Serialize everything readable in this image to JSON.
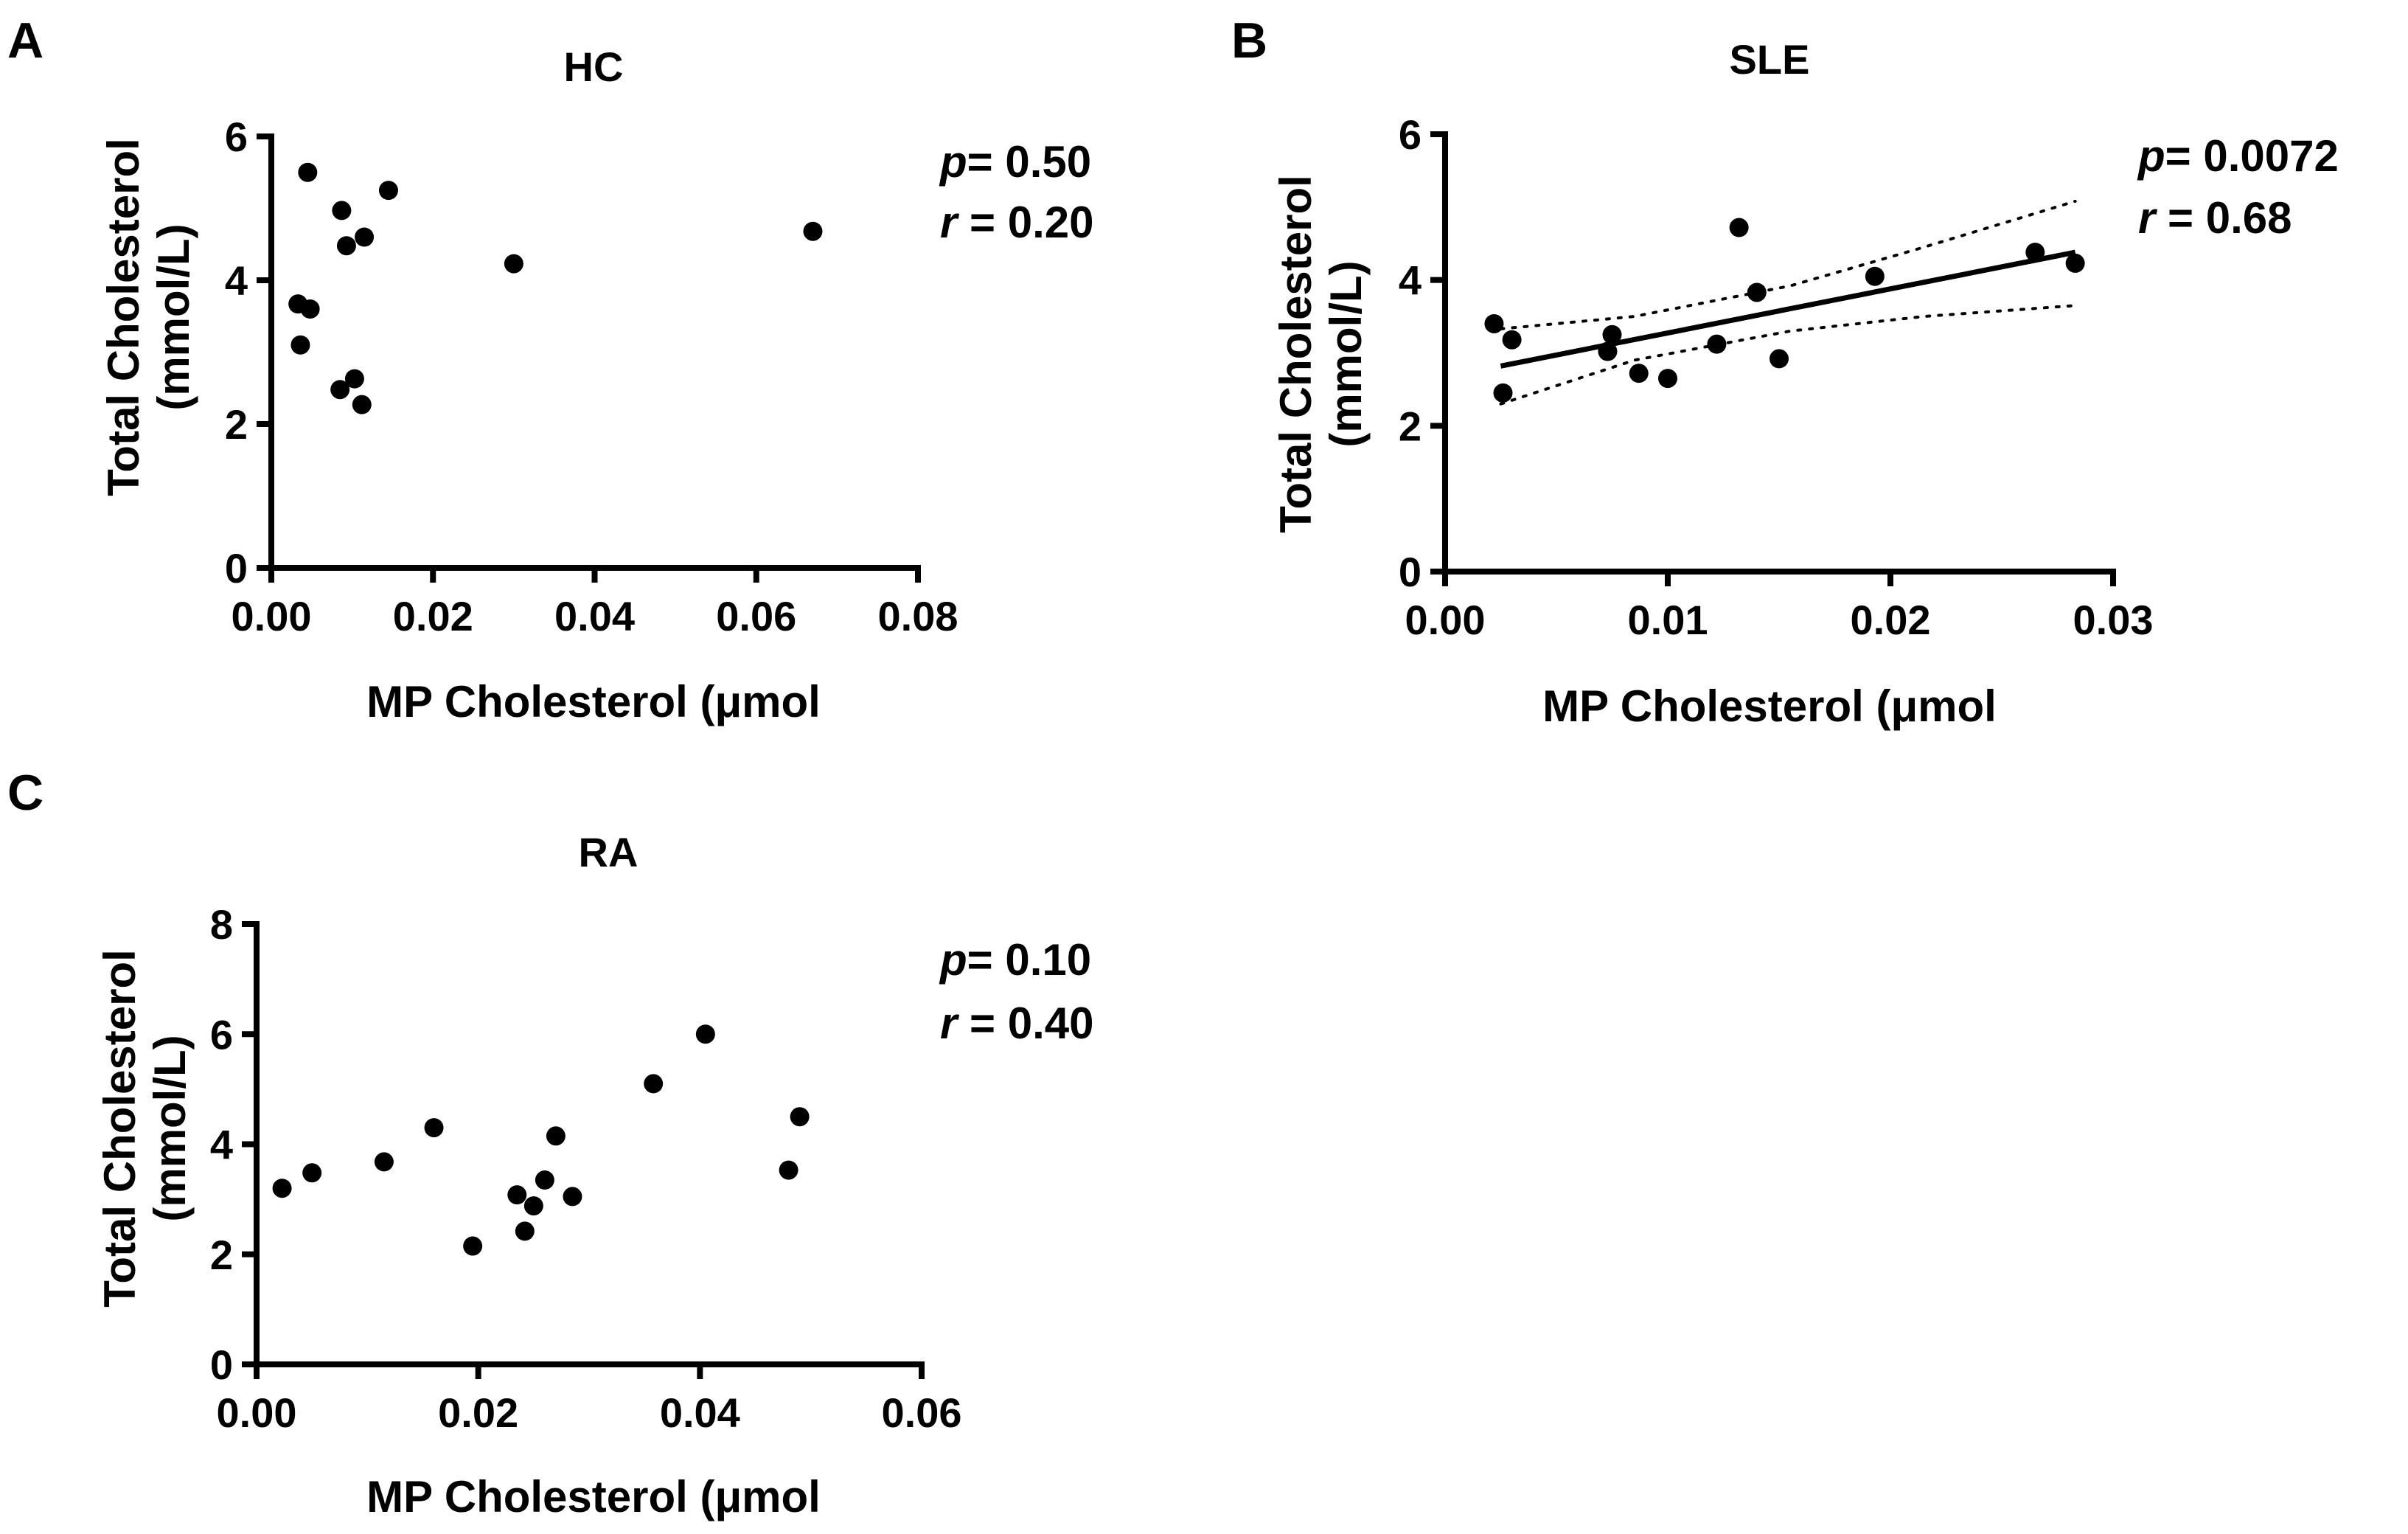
{
  "chart_data": [
    {
      "type": "scatter",
      "panel": "A",
      "title": "HC",
      "xlabel": "MP Cholesterol (μmol",
      "ylabel": "Total Cholesterol\n(mmol/L)",
      "xlim": [
        0,
        0.08
      ],
      "ylim": [
        0,
        6
      ],
      "xticks": [
        "0.00",
        "0.02",
        "0.04",
        "0.06",
        "0.08"
      ],
      "yticks": [
        "0",
        "2",
        "4",
        "6"
      ],
      "stats": {
        "p_label": "p",
        "p_value": "= 0.50",
        "r_label": "r",
        "r_value": " = 0.20"
      },
      "points": [
        {
          "x": 0.0045,
          "y": 5.5
        },
        {
          "x": 0.0145,
          "y": 5.25
        },
        {
          "x": 0.0087,
          "y": 4.97
        },
        {
          "x": 0.0115,
          "y": 4.6
        },
        {
          "x": 0.0093,
          "y": 4.48
        },
        {
          "x": 0.03,
          "y": 4.23
        },
        {
          "x": 0.067,
          "y": 4.68
        },
        {
          "x": 0.0033,
          "y": 3.67
        },
        {
          "x": 0.0048,
          "y": 3.6
        },
        {
          "x": 0.0036,
          "y": 3.1
        },
        {
          "x": 0.0103,
          "y": 2.63
        },
        {
          "x": 0.0085,
          "y": 2.48
        },
        {
          "x": 0.0112,
          "y": 2.27
        }
      ],
      "grid": false
    },
    {
      "type": "scatter",
      "panel": "B",
      "title": "SLE",
      "xlabel": "MP Cholesterol (μmol",
      "ylabel": "Total Cholesterol\n(mmol/L)",
      "xlim": [
        0,
        0.03
      ],
      "ylim": [
        0,
        6
      ],
      "xticks": [
        "0.00",
        "0.01",
        "0.02",
        "0.03"
      ],
      "yticks": [
        "0",
        "2",
        "4",
        "6"
      ],
      "stats": {
        "p_label": "p",
        "p_value": "= 0.0072",
        "r_label": "r",
        "r_value": " = 0.68"
      },
      "points": [
        {
          "x": 0.0022,
          "y": 3.4
        },
        {
          "x": 0.003,
          "y": 3.18
        },
        {
          "x": 0.0026,
          "y": 2.45
        },
        {
          "x": 0.0075,
          "y": 3.25
        },
        {
          "x": 0.0073,
          "y": 3.02
        },
        {
          "x": 0.0087,
          "y": 2.72
        },
        {
          "x": 0.01,
          "y": 2.65
        },
        {
          "x": 0.0122,
          "y": 3.12
        },
        {
          "x": 0.0132,
          "y": 4.72
        },
        {
          "x": 0.014,
          "y": 3.83
        },
        {
          "x": 0.015,
          "y": 2.92
        },
        {
          "x": 0.0193,
          "y": 4.05
        },
        {
          "x": 0.0265,
          "y": 4.38
        },
        {
          "x": 0.0283,
          "y": 4.23
        }
      ],
      "fit_line": [
        {
          "x": 0.0025,
          "y": 2.82
        },
        {
          "x": 0.0283,
          "y": 4.38
        }
      ],
      "ci_upper": [
        {
          "x": 0.0025,
          "y": 3.33
        },
        {
          "x": 0.0085,
          "y": 3.5
        },
        {
          "x": 0.0155,
          "y": 3.92
        },
        {
          "x": 0.0215,
          "y": 4.45
        },
        {
          "x": 0.0283,
          "y": 5.08
        }
      ],
      "ci_lower": [
        {
          "x": 0.0025,
          "y": 2.3
        },
        {
          "x": 0.0085,
          "y": 2.9
        },
        {
          "x": 0.0155,
          "y": 3.3
        },
        {
          "x": 0.0215,
          "y": 3.5
        },
        {
          "x": 0.0283,
          "y": 3.65
        }
      ],
      "grid": false
    },
    {
      "type": "scatter",
      "panel": "C",
      "title": "RA",
      "xlabel": "MP Cholesterol (μmol",
      "ylabel": "Total Cholesterol\n(mmol/L)",
      "xlim": [
        0,
        0.06
      ],
      "ylim": [
        0,
        8
      ],
      "xticks": [
        "0.00",
        "0.02",
        "0.04",
        "0.06"
      ],
      "yticks": [
        "0",
        "2",
        "4",
        "6",
        "8"
      ],
      "stats": {
        "p_label": "p",
        "p_value": "= 0.10",
        "r_label": "r",
        "r_value": " = 0.40"
      },
      "points": [
        {
          "x": 0.0023,
          "y": 3.2
        },
        {
          "x": 0.005,
          "y": 3.48
        },
        {
          "x": 0.0115,
          "y": 3.68
        },
        {
          "x": 0.016,
          "y": 4.3
        },
        {
          "x": 0.0195,
          "y": 2.15
        },
        {
          "x": 0.0235,
          "y": 3.08
        },
        {
          "x": 0.0242,
          "y": 2.42
        },
        {
          "x": 0.025,
          "y": 2.88
        },
        {
          "x": 0.026,
          "y": 3.35
        },
        {
          "x": 0.027,
          "y": 4.15
        },
        {
          "x": 0.0285,
          "y": 3.05
        },
        {
          "x": 0.0358,
          "y": 5.1
        },
        {
          "x": 0.0405,
          "y": 6.0
        },
        {
          "x": 0.048,
          "y": 3.53
        },
        {
          "x": 0.049,
          "y": 4.5
        }
      ],
      "grid": false
    }
  ]
}
